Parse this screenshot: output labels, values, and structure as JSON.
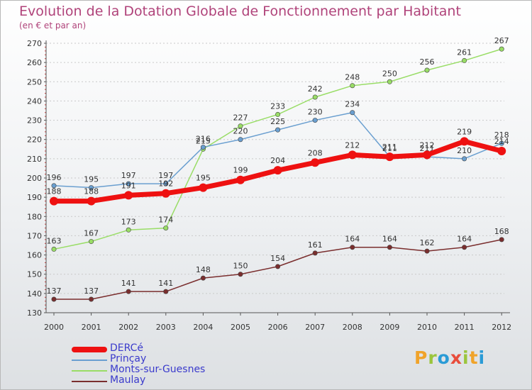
{
  "title": "Evolution de la Dotation Globale de Fonctionnement par Habitant",
  "subtitle": "(en € et par an)",
  "brand": {
    "text": "Proxiti",
    "letters": [
      {
        "ch": "P",
        "color": "#f0a32a"
      },
      {
        "ch": "r",
        "color": "#9bc53d"
      },
      {
        "ch": "o",
        "color": "#2a9bd6"
      },
      {
        "ch": "x",
        "color": "#e84d3c"
      },
      {
        "ch": "i",
        "color": "#9bc53d"
      },
      {
        "ch": "t",
        "color": "#f0a32a"
      },
      {
        "ch": "i",
        "color": "#2a9bd6"
      }
    ]
  },
  "chart_data": {
    "type": "line",
    "x": [
      "2000",
      "2001",
      "2002",
      "2003",
      "2004",
      "2005",
      "2006",
      "2007",
      "2008",
      "2009",
      "2010",
      "2011",
      "2012"
    ],
    "ylim": [
      130,
      270
    ],
    "yticks": [
      130,
      140,
      150,
      160,
      170,
      180,
      190,
      200,
      210,
      220,
      230,
      240,
      250,
      260,
      270
    ],
    "grid": "horizontal dotted",
    "legend_position": "bottom-left",
    "series": [
      {
        "name": "DERCé",
        "color": "#ee1111",
        "values": [
          188,
          188,
          191,
          192,
          195,
          199,
          204,
          208,
          212,
          211,
          212,
          219,
          214
        ]
      },
      {
        "name": "Prinçay",
        "color": "#6a9fd0",
        "values": [
          196,
          195,
          197,
          197,
          216,
          220,
          225,
          230,
          234,
          211,
          211,
          210,
          218
        ]
      },
      {
        "name": "Monts-sur-Guesnes",
        "color": "#99dd66",
        "values": [
          163,
          167,
          173,
          174,
          215,
          227,
          233,
          242,
          248,
          250,
          256,
          261,
          267
        ]
      },
      {
        "name": "Maulay",
        "color": "#7a2e2e",
        "values": [
          137,
          137,
          141,
          141,
          148,
          150,
          154,
          161,
          164,
          164,
          162,
          164,
          168
        ]
      }
    ]
  }
}
